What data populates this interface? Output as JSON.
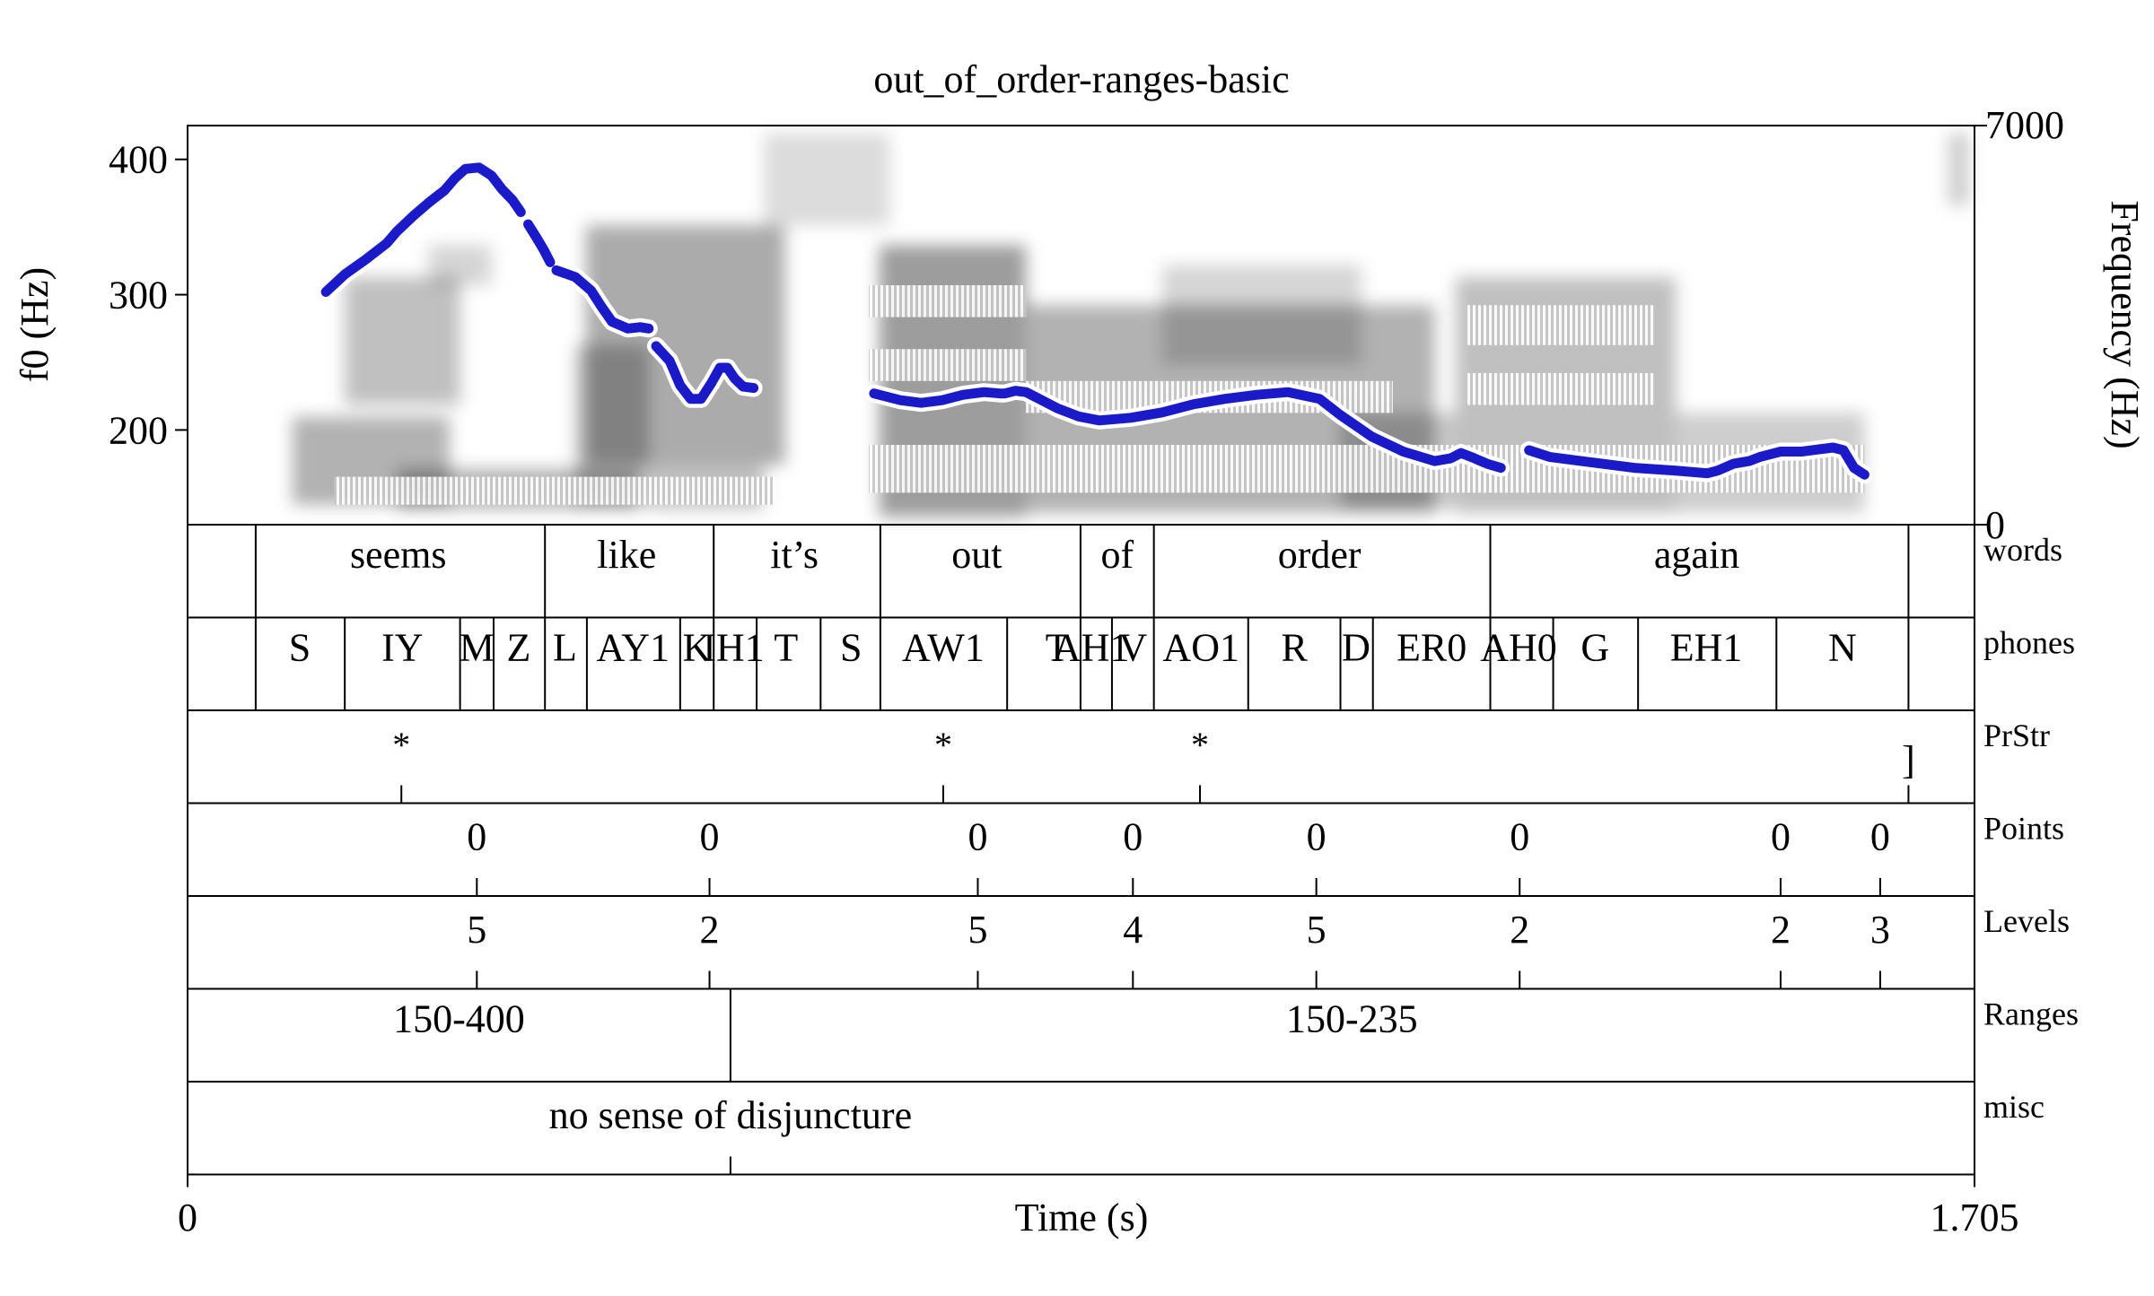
{
  "title": "out_of_order-ranges-basic",
  "axes": {
    "left_label": "f0 (Hz)",
    "right_label": "Frequency (Hz)",
    "x_label": "Time (s)",
    "x_min": "0",
    "x_max": "1.705",
    "freq_max": "7000",
    "freq_min": "0"
  },
  "chart_data": {
    "type": "line",
    "title": "out_of_order-ranges-basic",
    "xlabel": "Time (s)",
    "ylabel": "f0 (Hz)",
    "xlim": [
      0,
      1.705
    ],
    "ylim": [
      130,
      425
    ],
    "y_ticks": [
      200,
      300,
      400
    ],
    "y2lim": [
      0,
      7000
    ],
    "series": [
      {
        "name": "",
        "color": "#1a1ac8",
        "segments": [
          [
            [
              0.132,
              302
            ],
            [
              0.15,
              315
            ],
            [
              0.17,
              326
            ],
            [
              0.19,
              338
            ],
            [
              0.2,
              347
            ],
            [
              0.215,
              358
            ],
            [
              0.23,
              368
            ],
            [
              0.245,
              377
            ],
            [
              0.255,
              386
            ],
            [
              0.265,
              393
            ],
            [
              0.278,
              394
            ],
            [
              0.29,
              388
            ],
            [
              0.3,
              378
            ],
            [
              0.31,
              370
            ],
            [
              0.318,
              361
            ]
          ],
          [
            [
              0.325,
              352
            ],
            [
              0.333,
              342
            ],
            [
              0.34,
              333
            ],
            [
              0.346,
              324
            ]
          ],
          [
            [
              0.352,
              318
            ],
            [
              0.37,
              313
            ],
            [
              0.385,
              303
            ],
            [
              0.395,
              291
            ],
            [
              0.405,
              280
            ],
            [
              0.42,
              275
            ],
            [
              0.432,
              276
            ],
            [
              0.44,
              275
            ]
          ],
          [
            [
              0.447,
              262
            ],
            [
              0.46,
              251
            ],
            [
              0.47,
              233
            ],
            [
              0.48,
              223
            ],
            [
              0.49,
              223
            ],
            [
              0.5,
              235
            ],
            [
              0.508,
              246
            ],
            [
              0.515,
              246
            ],
            [
              0.522,
              238
            ],
            [
              0.53,
              232
            ],
            [
              0.54,
              231
            ]
          ],
          [
            [
              0.655,
              227
            ],
            [
              0.68,
              222
            ],
            [
              0.7,
              220
            ],
            [
              0.72,
              222
            ],
            [
              0.74,
              226
            ],
            [
              0.76,
              228
            ],
            [
              0.775,
              227
            ],
            [
              0.78,
              227
            ],
            [
              0.79,
              229
            ],
            [
              0.8,
              228
            ],
            [
              0.81,
              224
            ],
            [
              0.83,
              216
            ],
            [
              0.85,
              210
            ],
            [
              0.87,
              207
            ],
            [
              0.9,
              209
            ],
            [
              0.93,
              213
            ],
            [
              0.96,
              219
            ],
            [
              0.99,
              223
            ],
            [
              1.02,
              226
            ],
            [
              1.05,
              228
            ],
            [
              1.08,
              223
            ],
            [
              1.1,
              211
            ],
            [
              1.13,
              195
            ],
            [
              1.16,
              184
            ],
            [
              1.19,
              177
            ],
            [
              1.205,
              179
            ],
            [
              1.215,
              183
            ],
            [
              1.225,
              180
            ],
            [
              1.24,
              175
            ],
            [
              1.253,
              172
            ]
          ],
          [
            [
              1.28,
              185
            ],
            [
              1.3,
              180
            ],
            [
              1.34,
              176
            ],
            [
              1.38,
              172
            ],
            [
              1.42,
              170
            ],
            [
              1.45,
              168
            ],
            [
              1.46,
              170
            ],
            [
              1.475,
              175
            ],
            [
              1.49,
              177
            ],
            [
              1.5,
              180
            ],
            [
              1.52,
              184
            ],
            [
              1.54,
              184
            ],
            [
              1.56,
              186
            ],
            [
              1.57,
              187
            ],
            [
              1.58,
              185
            ],
            [
              1.59,
              172
            ],
            [
              1.6,
              167
            ]
          ]
        ]
      }
    ]
  },
  "tiers": [
    {
      "name": "words",
      "type": "interval",
      "boundaries": [
        0.065,
        0.341,
        0.502,
        0.661,
        0.852,
        0.922,
        1.243,
        1.642
      ],
      "labels": [
        {
          "t": 0.201,
          "text": "seems"
        },
        {
          "t": 0.419,
          "text": "like"
        },
        {
          "t": 0.579,
          "text": "it’s"
        },
        {
          "t": 0.753,
          "text": "out"
        },
        {
          "t": 0.887,
          "text": "of"
        },
        {
          "t": 1.08,
          "text": "order"
        },
        {
          "t": 1.44,
          "text": "again"
        }
      ]
    },
    {
      "name": "phones",
      "type": "interval",
      "boundaries": [
        0.065,
        0.15,
        0.26,
        0.292,
        0.341,
        0.381,
        0.47,
        0.502,
        0.543,
        0.604,
        0.661,
        0.782,
        0.852,
        0.882,
        0.922,
        1.012,
        1.1,
        1.131,
        1.243,
        1.303,
        1.384,
        1.516,
        1.642
      ],
      "labels": [
        {
          "t": 0.107,
          "text": "S"
        },
        {
          "t": 0.205,
          "text": "IY"
        },
        {
          "t": 0.276,
          "text": "M"
        },
        {
          "t": 0.316,
          "text": "Z"
        },
        {
          "t": 0.36,
          "text": "L"
        },
        {
          "t": 0.425,
          "text": "AY1"
        },
        {
          "t": 0.486,
          "text": "K"
        },
        {
          "t": 0.521,
          "text": "IH1"
        },
        {
          "t": 0.571,
          "text": "T"
        },
        {
          "t": 0.633,
          "text": "S"
        },
        {
          "t": 0.721,
          "text": "AW1"
        },
        {
          "t": 0.83,
          "text": "T"
        },
        {
          "t": 0.862,
          "text": "AH1"
        },
        {
          "t": 0.902,
          "text": "V"
        },
        {
          "t": 0.967,
          "text": "AO1"
        },
        {
          "t": 1.056,
          "text": "R"
        },
        {
          "t": 1.115,
          "text": "D"
        },
        {
          "t": 1.187,
          "text": "ER0"
        },
        {
          "t": 1.27,
          "text": "AH0"
        },
        {
          "t": 1.343,
          "text": "G"
        },
        {
          "t": 1.449,
          "text": "EH1"
        },
        {
          "t": 1.579,
          "text": "N"
        }
      ]
    },
    {
      "name": "PrStr",
      "type": "point",
      "points": [
        {
          "t": 0.204,
          "text": "*"
        },
        {
          "t": 0.721,
          "text": "*"
        },
        {
          "t": 0.966,
          "text": "*"
        },
        {
          "t": 1.642,
          "text": "]"
        }
      ]
    },
    {
      "name": "Points",
      "type": "point",
      "points": [
        {
          "t": 0.276,
          "text": "0"
        },
        {
          "t": 0.498,
          "text": "0"
        },
        {
          "t": 0.754,
          "text": "0"
        },
        {
          "t": 0.902,
          "text": "0"
        },
        {
          "t": 1.077,
          "text": "0"
        },
        {
          "t": 1.271,
          "text": "0"
        },
        {
          "t": 1.52,
          "text": "0"
        },
        {
          "t": 1.615,
          "text": "0"
        }
      ]
    },
    {
      "name": "Levels",
      "type": "point",
      "points": [
        {
          "t": 0.276,
          "text": "5"
        },
        {
          "t": 0.498,
          "text": "2"
        },
        {
          "t": 0.754,
          "text": "5"
        },
        {
          "t": 0.902,
          "text": "4"
        },
        {
          "t": 1.077,
          "text": "5"
        },
        {
          "t": 1.271,
          "text": "2"
        },
        {
          "t": 1.52,
          "text": "2"
        },
        {
          "t": 1.615,
          "text": "3"
        }
      ]
    },
    {
      "name": "Ranges",
      "type": "interval",
      "boundaries": [
        0.518
      ],
      "labels": [
        {
          "t": 0.259,
          "text": "150-400"
        },
        {
          "t": 1.111,
          "text": "150-235"
        }
      ]
    },
    {
      "name": "misc",
      "type": "point",
      "points": [
        {
          "t": 0.518,
          "text": "no sense of disjuncture"
        }
      ]
    }
  ]
}
